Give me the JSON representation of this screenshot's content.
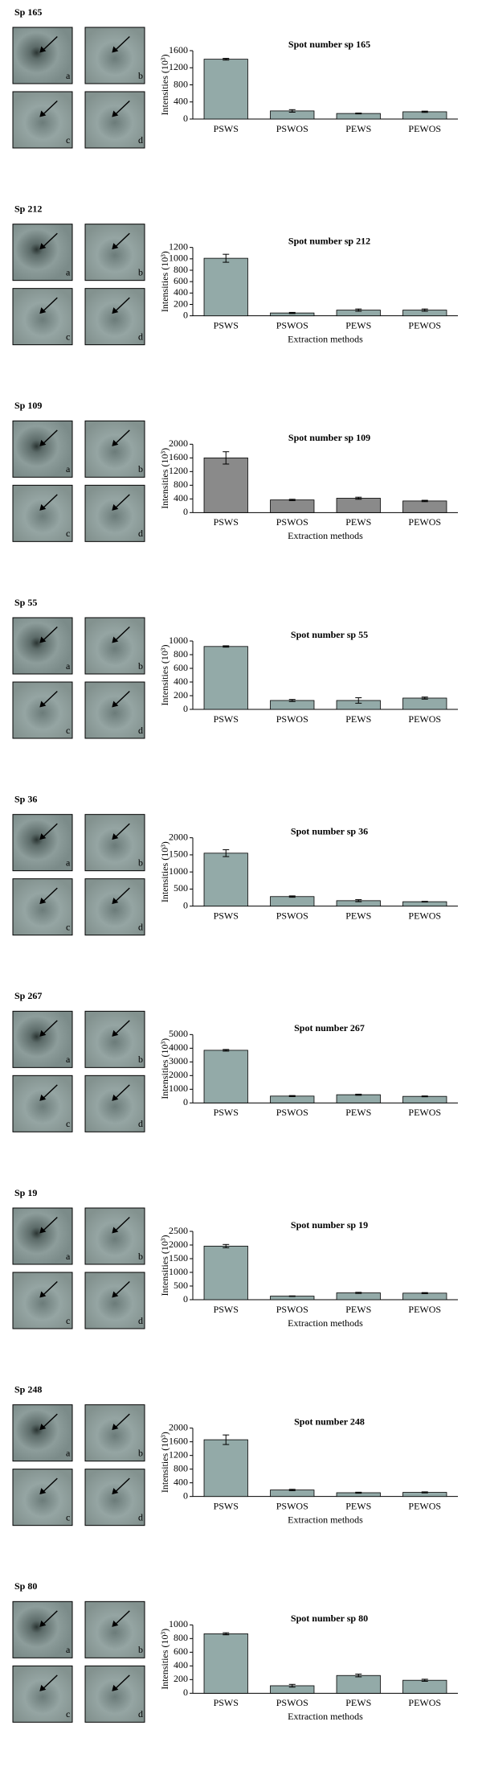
{
  "chart_data": [
    {
      "type": "bar",
      "spot_label": "Sp 165",
      "image_labels": [
        "a",
        "b",
        "c",
        "d"
      ],
      "title": "Spot number sp 165",
      "ylabel": "Intensities (10³)",
      "categories": [
        "PSWS",
        "PSWOS",
        "PEWS",
        "PEWOS"
      ],
      "values": [
        1400,
        190,
        130,
        170
      ],
      "errors": [
        20,
        30,
        10,
        15
      ],
      "color": "#93aaa8",
      "ylim": [
        0,
        1600
      ],
      "yticks": [
        0,
        400,
        800,
        1200,
        1600
      ]
    },
    {
      "type": "bar",
      "spot_label": "Sp 212",
      "image_labels": [
        "a",
        "b",
        "c",
        "d"
      ],
      "title": "Spot number sp 212",
      "ylabel": "Intensities (10³)",
      "xlabel": "Extraction methods",
      "categories": [
        "PSWS",
        "PSWOS",
        "PEWS",
        "PEWOS"
      ],
      "values": [
        1010,
        50,
        100,
        100
      ],
      "errors": [
        70,
        10,
        20,
        20
      ],
      "color": "#93aaa8",
      "ylim": [
        0,
        1200
      ],
      "yticks": [
        0,
        200,
        400,
        600,
        800,
        1000,
        1200
      ]
    },
    {
      "type": "bar",
      "spot_label": "Sp 109",
      "image_labels": [
        "a",
        "b",
        "c",
        "d"
      ],
      "title": "Spot number sp 109",
      "ylabel": "Intensities (10³)",
      "xlabel": "Extraction methods",
      "categories": [
        "PSWS",
        "PSWOS",
        "PEWS",
        "PEWOS"
      ],
      "values": [
        1600,
        370,
        420,
        340
      ],
      "errors": [
        180,
        20,
        30,
        20
      ],
      "color": "#8a8a8a",
      "ylim": [
        0,
        2000
      ],
      "yticks": [
        0,
        400,
        800,
        1200,
        1600,
        2000
      ]
    },
    {
      "type": "bar",
      "spot_label": "Sp 55",
      "image_labels": [
        "a",
        "b",
        "c",
        "d"
      ],
      "title": "Spot number sp 55",
      "ylabel": "Intensities (10³)",
      "categories": [
        "PSWS",
        "PSWOS",
        "PEWS",
        "PEWOS"
      ],
      "values": [
        920,
        130,
        130,
        165
      ],
      "errors": [
        10,
        15,
        40,
        15
      ],
      "color": "#93aaa8",
      "ylim": [
        0,
        1000
      ],
      "yticks": [
        0,
        200,
        400,
        600,
        800,
        1000
      ]
    },
    {
      "type": "bar",
      "spot_label": "Sp 36",
      "image_labels": [
        "a",
        "b",
        "c",
        "d"
      ],
      "title": "Spot number sp 36",
      "ylabel": "Intensities (10³)",
      "categories": [
        "PSWS",
        "PSWOS",
        "PEWS",
        "PEWOS"
      ],
      "values": [
        1550,
        280,
        160,
        130
      ],
      "errors": [
        100,
        20,
        30,
        10
      ],
      "color": "#93aaa8",
      "ylim": [
        0,
        2000
      ],
      "yticks": [
        0,
        500,
        1000,
        1500,
        2000
      ]
    },
    {
      "type": "bar",
      "spot_label": "Sp 267",
      "image_labels": [
        "a",
        "b",
        "c",
        "d"
      ],
      "title": "Spot number 267",
      "ylabel": "Intensities (10³)",
      "categories": [
        "PSWS",
        "PSWOS",
        "PEWS",
        "PEWOS"
      ],
      "values": [
        3850,
        500,
        600,
        480
      ],
      "errors": [
        60,
        40,
        40,
        30
      ],
      "color": "#93aaa8",
      "ylim": [
        0,
        5000
      ],
      "yticks": [
        0,
        1000,
        2000,
        3000,
        4000,
        5000
      ]
    },
    {
      "type": "bar",
      "spot_label": "Sp 19",
      "image_labels": [
        "a",
        "b",
        "c",
        "d"
      ],
      "title": "Spot number sp 19",
      "ylabel": "Intensities (10³)",
      "xlabel": "Extraction methods",
      "categories": [
        "PSWS",
        "PSWOS",
        "PEWS",
        "PEWOS"
      ],
      "values": [
        1960,
        130,
        250,
        240
      ],
      "errors": [
        60,
        10,
        20,
        20
      ],
      "color": "#93aaa8",
      "ylim": [
        0,
        2500
      ],
      "yticks": [
        0,
        500,
        1000,
        1500,
        2000,
        2500
      ]
    },
    {
      "type": "bar",
      "spot_label": "Sp 248",
      "image_labels": [
        "a",
        "b",
        "c",
        "d"
      ],
      "title": "Spot number 248",
      "ylabel": "Intensities (10³)",
      "xlabel": "Extraction methods",
      "categories": [
        "PSWS",
        "PSWOS",
        "PEWS",
        "PEWOS"
      ],
      "values": [
        1660,
        190,
        110,
        120
      ],
      "errors": [
        140,
        20,
        15,
        15
      ],
      "color": "#93aaa8",
      "ylim": [
        0,
        2000
      ],
      "yticks": [
        0,
        400,
        800,
        1200,
        1600,
        2000
      ]
    },
    {
      "type": "bar",
      "spot_label": "Sp 80",
      "image_labels": [
        "a",
        "b",
        "c",
        "d"
      ],
      "title": "Spot number sp 80",
      "ylabel": "Intensities (10³)",
      "xlabel": "Extraction methods",
      "categories": [
        "PSWS",
        "PSWOS",
        "PEWS",
        "PEWOS"
      ],
      "values": [
        870,
        110,
        260,
        190
      ],
      "errors": [
        15,
        20,
        20,
        15
      ],
      "color": "#93aaa8",
      "ylim": [
        0,
        1000
      ],
      "yticks": [
        0,
        200,
        400,
        600,
        800,
        1000
      ]
    }
  ]
}
